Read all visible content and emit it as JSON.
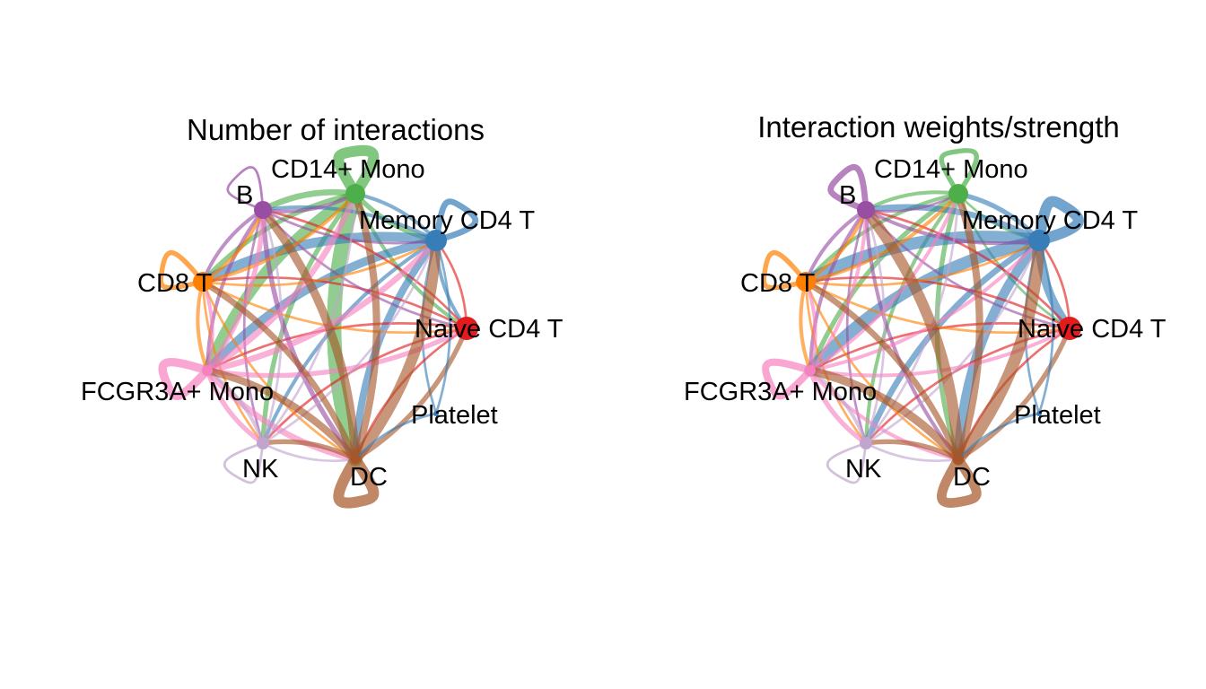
{
  "nodes": [
    {
      "id": "naive",
      "label": "Naive CD4 T",
      "color": "#e41a1c"
    },
    {
      "id": "memory",
      "label": "Memory CD4 T",
      "color": "#377eb8"
    },
    {
      "id": "cd14",
      "label": "CD14+ Mono",
      "color": "#4daf4a"
    },
    {
      "id": "b",
      "label": "B",
      "color": "#984ea3"
    },
    {
      "id": "cd8",
      "label": "CD8 T",
      "color": "#ff7f00"
    },
    {
      "id": "fcgr",
      "label": "FCGR3A+ Mono",
      "color": "#f781bf"
    },
    {
      "id": "nk",
      "label": "NK",
      "color": "#c2a5cf"
    },
    {
      "id": "dc",
      "label": "DC",
      "color": "#a65628"
    },
    {
      "id": "platelet",
      "label": "Platelet",
      "color": "#377eb8"
    }
  ],
  "panels": [
    {
      "title": "Number of interactions",
      "node_sizes": {
        "naive": 13,
        "memory": 12,
        "cd14": 11,
        "b": 10,
        "cd8": 11,
        "fcgr": 6,
        "nk": 7,
        "dc": 5,
        "platelet": 3
      },
      "loops": {
        "cd14": 9,
        "memory": 5,
        "cd8": 4,
        "b": 2,
        "fcgr": 7,
        "nk": 2,
        "dc": 9
      },
      "edges": [
        [
          "cd14",
          "b",
          5
        ],
        [
          "cd14",
          "cd8",
          4
        ],
        [
          "cd14",
          "fcgr",
          9
        ],
        [
          "cd14",
          "nk",
          4
        ],
        [
          "cd14",
          "dc",
          12
        ],
        [
          "cd14",
          "memory",
          4
        ],
        [
          "cd14",
          "naive",
          3
        ],
        [
          "memory",
          "cd14",
          3
        ],
        [
          "memory",
          "b",
          3
        ],
        [
          "memory",
          "cd8",
          8
        ],
        [
          "memory",
          "fcgr",
          7
        ],
        [
          "memory",
          "nk",
          3
        ],
        [
          "memory",
          "dc",
          6
        ],
        [
          "memory",
          "naive",
          3
        ],
        [
          "memory",
          "platelet",
          2
        ],
        [
          "naive",
          "b",
          2
        ],
        [
          "naive",
          "cd8",
          2
        ],
        [
          "naive",
          "fcgr",
          2
        ],
        [
          "naive",
          "nk",
          2
        ],
        [
          "naive",
          "dc",
          2
        ],
        [
          "naive",
          "memory",
          2
        ],
        [
          "b",
          "cd14",
          3
        ],
        [
          "b",
          "memory",
          2
        ],
        [
          "b",
          "cd8",
          3
        ],
        [
          "b",
          "fcgr",
          3
        ],
        [
          "b",
          "nk",
          2
        ],
        [
          "b",
          "dc",
          4
        ],
        [
          "b",
          "naive",
          2
        ],
        [
          "cd8",
          "cd14",
          3
        ],
        [
          "cd8",
          "memory",
          2
        ],
        [
          "cd8",
          "b",
          3
        ],
        [
          "cd8",
          "fcgr",
          3
        ],
        [
          "cd8",
          "nk",
          2
        ],
        [
          "cd8",
          "dc",
          2
        ],
        [
          "cd8",
          "naive",
          2
        ],
        [
          "fcgr",
          "b",
          4
        ],
        [
          "fcgr",
          "cd14",
          5
        ],
        [
          "fcgr",
          "memory",
          5
        ],
        [
          "fcgr",
          "naive",
          4
        ],
        [
          "fcgr",
          "nk",
          4
        ],
        [
          "fcgr",
          "dc",
          5
        ],
        [
          "fcgr",
          "cd8",
          3
        ],
        [
          "nk",
          "b",
          2
        ],
        [
          "nk",
          "cd14",
          2
        ],
        [
          "nk",
          "fcgr",
          3
        ],
        [
          "nk",
          "dc",
          2
        ],
        [
          "nk",
          "memory",
          2
        ],
        [
          "dc",
          "b",
          7
        ],
        [
          "dc",
          "cd14",
          6
        ],
        [
          "dc",
          "memory",
          9
        ],
        [
          "dc",
          "naive",
          4
        ],
        [
          "dc",
          "cd8",
          5
        ],
        [
          "dc",
          "fcgr",
          6
        ],
        [
          "dc",
          "nk",
          4
        ],
        [
          "platelet",
          "memory",
          2
        ],
        [
          "platelet",
          "dc",
          2
        ]
      ]
    },
    {
      "title": "Interaction weights/strength",
      "node_sizes": {
        "naive": 13,
        "memory": 12,
        "cd14": 11,
        "b": 10,
        "cd8": 11,
        "fcgr": 6,
        "nk": 7,
        "dc": 5,
        "platelet": 3
      },
      "loops": {
        "cd14": 4,
        "memory": 9,
        "cd8": 4,
        "b": 5,
        "fcgr": 6,
        "nk": 2,
        "dc": 8
      },
      "edges": [
        [
          "cd14",
          "b",
          3
        ],
        [
          "cd14",
          "cd8",
          3
        ],
        [
          "cd14",
          "fcgr",
          4
        ],
        [
          "cd14",
          "nk",
          3
        ],
        [
          "cd14",
          "dc",
          4
        ],
        [
          "cd14",
          "memory",
          2
        ],
        [
          "cd14",
          "naive",
          2
        ],
        [
          "memory",
          "cd14",
          4
        ],
        [
          "memory",
          "b",
          5
        ],
        [
          "memory",
          "cd8",
          10
        ],
        [
          "memory",
          "fcgr",
          10
        ],
        [
          "memory",
          "nk",
          5
        ],
        [
          "memory",
          "dc",
          8
        ],
        [
          "memory",
          "naive",
          7
        ],
        [
          "memory",
          "platelet",
          2
        ],
        [
          "naive",
          "b",
          2
        ],
        [
          "naive",
          "cd8",
          2
        ],
        [
          "naive",
          "fcgr",
          2
        ],
        [
          "naive",
          "nk",
          2
        ],
        [
          "naive",
          "dc",
          2
        ],
        [
          "naive",
          "memory",
          2
        ],
        [
          "b",
          "cd14",
          2
        ],
        [
          "b",
          "memory",
          3
        ],
        [
          "b",
          "cd8",
          3
        ],
        [
          "b",
          "fcgr",
          3
        ],
        [
          "b",
          "nk",
          2
        ],
        [
          "b",
          "dc",
          3
        ],
        [
          "b",
          "naive",
          2
        ],
        [
          "cd8",
          "cd14",
          3
        ],
        [
          "cd8",
          "memory",
          2
        ],
        [
          "cd8",
          "b",
          3
        ],
        [
          "cd8",
          "fcgr",
          3
        ],
        [
          "cd8",
          "nk",
          2
        ],
        [
          "cd8",
          "dc",
          2
        ],
        [
          "cd8",
          "naive",
          2
        ],
        [
          "fcgr",
          "b",
          3
        ],
        [
          "fcgr",
          "cd14",
          3
        ],
        [
          "fcgr",
          "memory",
          3
        ],
        [
          "fcgr",
          "naive",
          3
        ],
        [
          "fcgr",
          "nk",
          4
        ],
        [
          "fcgr",
          "dc",
          3
        ],
        [
          "fcgr",
          "cd8",
          3
        ],
        [
          "nk",
          "b",
          2
        ],
        [
          "nk",
          "cd14",
          2
        ],
        [
          "nk",
          "fcgr",
          3
        ],
        [
          "nk",
          "dc",
          2
        ],
        [
          "nk",
          "memory",
          2
        ],
        [
          "dc",
          "b",
          9
        ],
        [
          "dc",
          "cd14",
          6
        ],
        [
          "dc",
          "memory",
          10
        ],
        [
          "dc",
          "naive",
          4
        ],
        [
          "dc",
          "cd8",
          5
        ],
        [
          "dc",
          "fcgr",
          7
        ],
        [
          "dc",
          "nk",
          4
        ],
        [
          "platelet",
          "memory",
          2
        ],
        [
          "platelet",
          "dc",
          2
        ]
      ]
    }
  ]
}
